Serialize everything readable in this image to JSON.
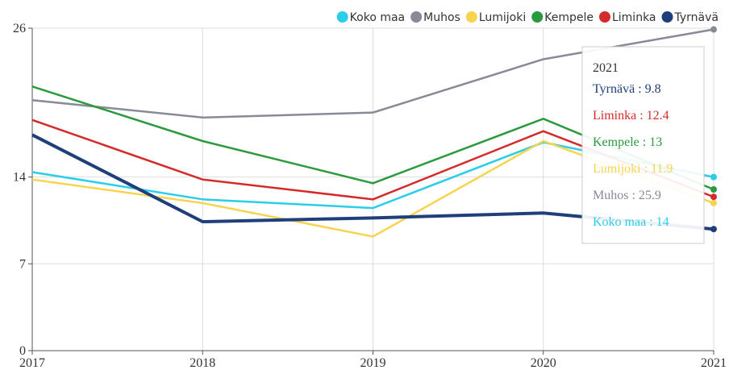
{
  "chart_data": {
    "type": "line",
    "x": [
      2017,
      2018,
      2019,
      2020,
      2021
    ],
    "xlim": [
      2017,
      2021
    ],
    "xticks": [
      2017,
      2018,
      2019,
      2020,
      2021
    ],
    "ylim": [
      0,
      26
    ],
    "yticks": [
      0,
      7,
      14,
      26
    ],
    "grid": true,
    "legend": "top-right",
    "series": [
      {
        "name": "Koko maa",
        "color": "#2bcde8",
        "values": [
          14.4,
          12.2,
          11.5,
          16.8,
          14
        ]
      },
      {
        "name": "Muhos",
        "color": "#868b95",
        "values": [
          20.2,
          18.8,
          19.2,
          23.5,
          25.9
        ]
      },
      {
        "name": "Lumijoki",
        "color": "#f7d450",
        "values": [
          13.8,
          11.9,
          9.2,
          16.9,
          11.9
        ]
      },
      {
        "name": "Kempele",
        "color": "#2b9a3e",
        "values": [
          21.3,
          16.9,
          13.5,
          18.7,
          13
        ]
      },
      {
        "name": "Liminka",
        "color": "#d42a2a",
        "values": [
          18.6,
          13.8,
          12.2,
          17.7,
          12.4
        ]
      },
      {
        "name": "Tyrnävä",
        "color": "#1f3f7a",
        "values": [
          17.4,
          10.4,
          10.7,
          11.1,
          9.8
        ]
      }
    ],
    "tooltip_separator": " : "
  }
}
